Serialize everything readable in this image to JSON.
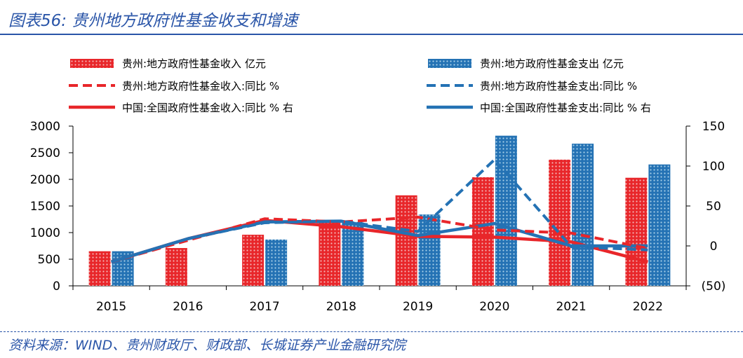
{
  "title": "图表56:  贵州地方政府性基金收支和增速",
  "source": "资料来源：WIND、贵州财政厅、财政部、长城证券产业金融研究院",
  "colors": {
    "accent": "#2a55a8",
    "red": "#e8262a",
    "blue": "#2472b4",
    "red_dot": "#f5b4b4",
    "blue_dot": "#a6cfe8",
    "negative_label": "#e8262a"
  },
  "chart_data": {
    "type": "bar+line",
    "categories": [
      "2015",
      "2016",
      "2017",
      "2018",
      "2019",
      "2020",
      "2021",
      "2022"
    ],
    "left_axis": {
      "ylim": [
        0,
        3000
      ],
      "ticks": [
        "0",
        "500",
        "1000",
        "1500",
        "2000",
        "2500",
        "3000"
      ]
    },
    "right_axis": {
      "ylim": [
        -50,
        150
      ],
      "ticks": [
        "(50)",
        "0",
        "50",
        "100",
        "150"
      ]
    },
    "bar_series": [
      {
        "name": "贵州:地方政府性基金收入 亿元",
        "color": "red",
        "values": [
          650,
          710,
          960,
          1200,
          1700,
          2040,
          2370,
          2030
        ]
      },
      {
        "name": "贵州:地方政府性基金支出 亿元",
        "color": "blue",
        "values": [
          650,
          null,
          870,
          1200,
          1340,
          2820,
          2670,
          2280
        ]
      }
    ],
    "line_series": [
      {
        "name": "贵州:地方政府性基金收入:同比 %",
        "color": "red",
        "style": "dashed",
        "values": [
          -20,
          7,
          34,
          30,
          36,
          20,
          16,
          -3
        ]
      },
      {
        "name": "贵州:地方政府性基金支出:同比 %",
        "color": "blue",
        "style": "dashed",
        "values": [
          -20,
          9,
          29,
          31,
          18,
          108,
          -1,
          -5
        ]
      },
      {
        "name": "中国:全国政府性基金收入:同比 % 右",
        "color": "red",
        "style": "solid",
        "values": [
          -20,
          9,
          32,
          24,
          12,
          11,
          5,
          -20
        ]
      },
      {
        "name": "中国:全国政府性基金支出:同比 % 右",
        "color": "blue",
        "style": "solid",
        "values": [
          -20,
          9,
          30,
          31,
          13,
          28,
          0,
          0
        ]
      }
    ]
  }
}
